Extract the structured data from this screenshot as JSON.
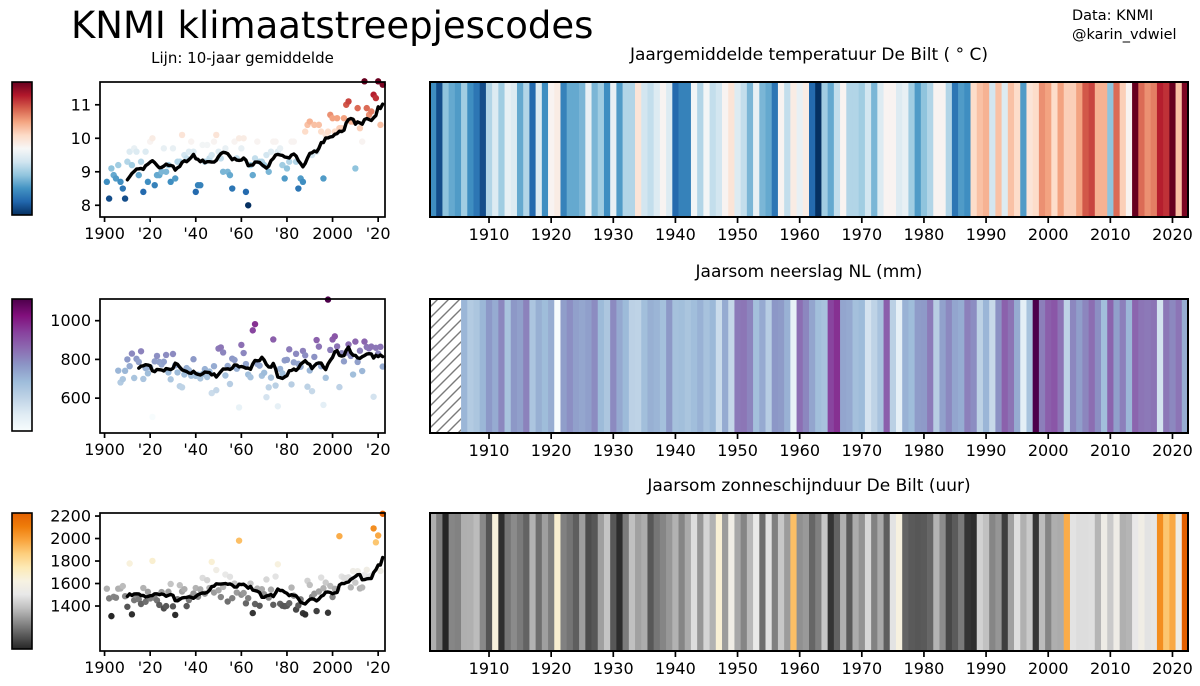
{
  "header": {
    "title": "KNMI klimaatstreepjescodes",
    "credit_source": "Data: KNMI",
    "credit_handle": "@karin_vdwiel"
  },
  "left_panel_subtitle": "Lijn: 10-jaar gemiddelde",
  "chart_data": [
    {
      "id": "temperature",
      "type": "stripes+scatter",
      "title": "Jaargemiddelde temperatuur De Bilt ( ° C)",
      "line_window_years": 10,
      "axis_start_year": 1901,
      "start_year": 1901,
      "end_year": 2022,
      "values": [
        8.7,
        8.2,
        9.1,
        8.9,
        8.8,
        9.2,
        8.7,
        8.5,
        8.2,
        9.3,
        9.6,
        9.2,
        9.7,
        9.6,
        8.9,
        9.3,
        8.4,
        9.6,
        8.7,
        9.9,
        10.0,
        8.6,
        8.9,
        8.9,
        9.0,
        9.7,
        9.0,
        9.2,
        8.7,
        9.7,
        8.8,
        9.3,
        9.3,
        10.1,
        9.5,
        9.4,
        9.6,
        9.9,
        9.6,
        8.4,
        8.6,
        8.6,
        9.8,
        9.3,
        9.8,
        9.4,
        9.5,
        9.9,
        10.1,
        9.6,
        9.4,
        9.0,
        9.7,
        9.0,
        8.9,
        8.5,
        9.9,
        9.4,
        10.0,
        9.7,
        10.0,
        8.4,
        8.0,
        9.2,
        8.9,
        9.4,
        9.9,
        9.3,
        9.3,
        9.2,
        9.5,
        9.0,
        9.6,
        9.9,
        9.9,
        9.6,
        9.7,
        9.2,
        8.8,
        9.1,
        9.3,
        9.9,
        9.9,
        9.3,
        8.5,
        8.8,
        8.7,
        10.2,
        10.4,
        10.5,
        9.5,
        10.4,
        9.6,
        10.4,
        10.2,
        8.8,
        10.1,
        10.2,
        10.7,
        10.6,
        10.2,
        10.6,
        10.3,
        10.3,
        10.6,
        11.0,
        11.1,
        10.5,
        10.5,
        9.1,
        10.9,
        10.3,
        9.9,
        11.7,
        10.9,
        10.7,
        10.8,
        11.3,
        11.2,
        11.7,
        10.4,
        11.6
      ],
      "scatter_ylim": [
        7.65,
        11.68
      ],
      "scatter_yticks": {
        "values": [
          8,
          9,
          10,
          11
        ],
        "labels": [
          "8",
          "9",
          "10",
          "11"
        ]
      },
      "scatter_xticks": {
        "values": [
          1900,
          1920,
          1940,
          1960,
          1980,
          2000,
          2020
        ],
        "labels": [
          "1900",
          "'20",
          "'40",
          "'60",
          "'80",
          "2000",
          "'20"
        ]
      },
      "stripes_xticks": {
        "values": [
          1910,
          1920,
          1930,
          1940,
          1950,
          1960,
          1970,
          1980,
          1990,
          2000,
          2010,
          2020
        ],
        "labels": [
          "1910",
          "1920",
          "1930",
          "1940",
          "1950",
          "1960",
          "1970",
          "1980",
          "1990",
          "2000",
          "2010",
          "2020"
        ]
      },
      "colormap_stops": [
        "#053061",
        "#2166ac",
        "#4393c3",
        "#92c5de",
        "#d1e5f0",
        "#f7f7f7",
        "#fddbc7",
        "#f4a582",
        "#d6604d",
        "#b2182b",
        "#67001f"
      ]
    },
    {
      "id": "precipitation",
      "type": "stripes+scatter",
      "title": "Jaarsom neerslag NL (mm)",
      "line_window_years": 10,
      "axis_start_year": 1901,
      "start_year": 1906,
      "end_year": 2022,
      "no_data_hatched_years": [
        1901,
        1905
      ],
      "values": [
        742,
        681,
        698,
        741,
        800,
        765,
        830,
        704,
        803,
        787,
        842,
        699,
        755,
        728,
        760,
        503,
        790,
        818,
        787,
        774,
        788,
        823,
        733,
        697,
        828,
        769,
        733,
        662,
        656,
        722,
        755,
        744,
        716,
        801,
        715,
        721,
        702,
        724,
        750,
        709,
        737,
        626,
        765,
        641,
        856,
        862,
        836,
        717,
        766,
        673,
        804,
        797,
        752,
        552,
        875,
        833,
        776,
        722,
        708,
        950,
        982,
        777,
        768,
        716,
        731,
        605,
        656,
        706,
        903,
        665,
        558,
        751,
        728,
        795,
        798,
        852,
        671,
        785,
        829,
        777,
        762,
        844,
        821,
        659,
        743,
        636,
        813,
        900,
        866,
        765,
        565,
        705,
        1109,
        849,
        903,
        919,
        867,
        657,
        832,
        790,
        835,
        877,
        818,
        722,
        892,
        787,
        845,
        740,
        892,
        864,
        857,
        866,
        607,
        860,
        830,
        865,
        763
      ],
      "scatter_ylim": [
        420,
        1112
      ],
      "scatter_yticks": {
        "values": [
          600,
          800,
          1000
        ],
        "labels": [
          "600",
          "800",
          "1000"
        ]
      },
      "scatter_xticks": {
        "values": [
          1900,
          1920,
          1940,
          1960,
          1980,
          2000,
          2020
        ],
        "labels": [
          "1900",
          "'20",
          "'40",
          "'60",
          "'80",
          "2000",
          "'20"
        ]
      },
      "stripes_xticks": {
        "values": [
          1910,
          1920,
          1930,
          1940,
          1950,
          1960,
          1970,
          1980,
          1990,
          2000,
          2010,
          2020
        ],
        "labels": [
          "1910",
          "1920",
          "1930",
          "1940",
          "1950",
          "1960",
          "1970",
          "1980",
          "1990",
          "2000",
          "2010",
          "2020"
        ]
      },
      "colormap_stops": [
        "#f7fcfd",
        "#e0ecf4",
        "#bfd3e6",
        "#9ebcda",
        "#8c96c6",
        "#8c6bb1",
        "#88419d",
        "#810f7c",
        "#4d004b"
      ]
    },
    {
      "id": "sunshine",
      "type": "stripes+scatter",
      "title": "Jaarsom zonneschijnduur De Bilt (uur)",
      "line_window_years": 10,
      "axis_start_year": 1901,
      "start_year": 1901,
      "end_year": 2022,
      "values": [
        1554,
        1468,
        1310,
        1482,
        1474,
        1554,
        1556,
        1577,
        1487,
        1393,
        1778,
        1326,
        1452,
        1491,
        1460,
        1418,
        1560,
        1438,
        1526,
        1467,
        1801,
        1472,
        1450,
        1410,
        1524,
        1379,
        1399,
        1527,
        1596,
        1397,
        1321,
        1461,
        1585,
        1529,
        1550,
        1399,
        1453,
        1480,
        1511,
        1560,
        1482,
        1548,
        1650,
        1510,
        1630,
        1560,
        1792,
        1520,
        1720,
        1540,
        1480,
        1570,
        1680,
        1440,
        1660,
        1470,
        1600,
        1520,
        1981,
        1500,
        1516,
        1424,
        1470,
        1600,
        1337,
        1418,
        1555,
        1402,
        1549,
        1505,
        1636,
        1475,
        1546,
        1411,
        1662,
        1771,
        1420,
        1403,
        1398,
        1402,
        1425,
        1564,
        1492,
        1368,
        1405,
        1460,
        1336,
        1325,
        1624,
        1587,
        1482,
        1509,
        1355,
        1529,
        1653,
        1558,
        1608,
        1340,
        1578,
        1480,
        1553,
        1547,
        2021,
        1662,
        1650,
        1650,
        1655,
        1566,
        1711,
        1608,
        1710,
        1556,
        1565,
        1678,
        1722,
        1662,
        1670,
        2090,
        1966,
        2027,
        1712,
        2220
      ],
      "scatter_ylim": [
        1000,
        2227
      ],
      "scatter_yticks": {
        "values": [
          1400,
          1600,
          1800,
          2000,
          2200
        ],
        "labels": [
          "1400",
          "1600",
          "1800",
          "2000",
          "2200"
        ]
      },
      "scatter_xticks": {
        "values": [
          1900,
          1920,
          1940,
          1960,
          1980,
          2000,
          2020
        ],
        "labels": [
          "1900",
          "'20",
          "'40",
          "'60",
          "'80",
          "2000",
          "'20"
        ]
      },
      "stripes_xticks": {
        "values": [
          1910,
          1920,
          1930,
          1940,
          1950,
          1960,
          1970,
          1980,
          1990,
          2000,
          2010,
          2020
        ],
        "labels": [
          "1910",
          "1920",
          "1930",
          "1940",
          "1950",
          "1960",
          "1970",
          "1980",
          "1990",
          "2000",
          "2010",
          "2020"
        ]
      },
      "colormap_stops": [
        "#262626",
        "#595959",
        "#8c8c8c",
        "#bfbfbf",
        "#e8e8e8",
        "#f7f2e2",
        "#fdeab5",
        "#fdcf7d",
        "#f9a43d",
        "#ef7d0a",
        "#e36000"
      ]
    }
  ],
  "style_colors": {
    "line": "#000000",
    "hatch": "#7a7a7a",
    "axis": "#000000",
    "background": "#ffffff"
  }
}
